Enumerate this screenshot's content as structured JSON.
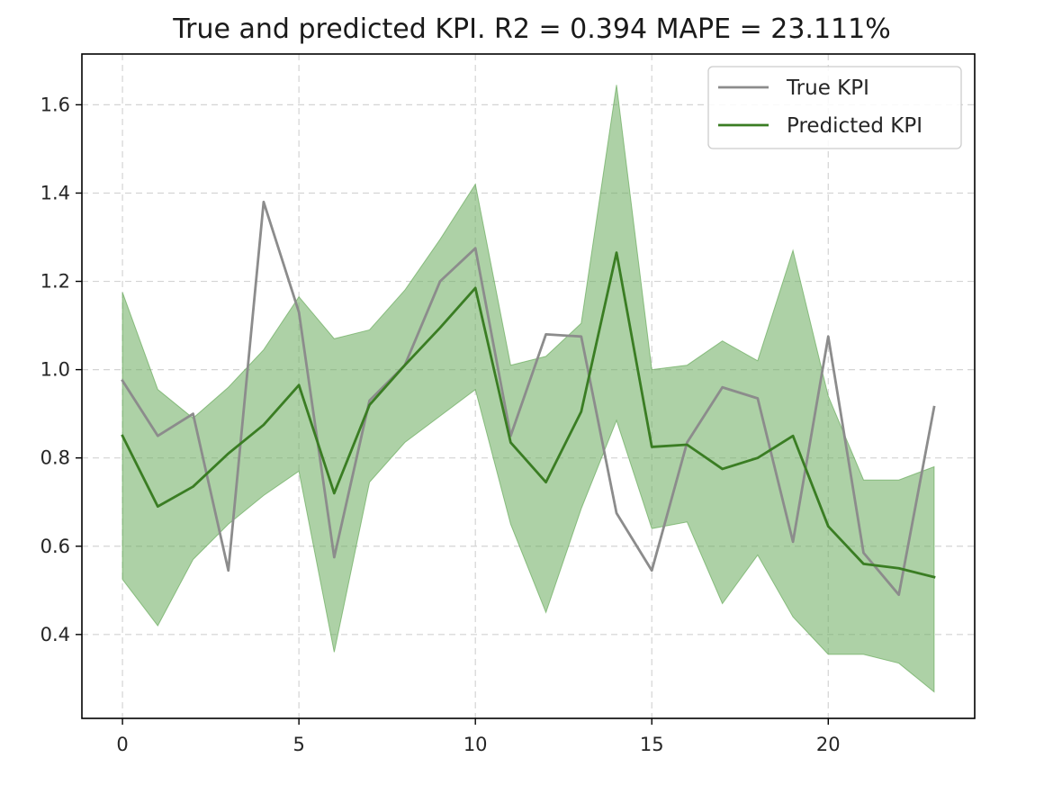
{
  "chart_data": {
    "type": "line",
    "title": "True and predicted KPI. R2 = 0.394 MAPE = 23.111%",
    "xlabel": "",
    "ylabel": "",
    "xlim": [
      -1.15,
      24.15
    ],
    "ylim": [
      0.21,
      1.715
    ],
    "xticks": [
      0,
      5,
      10,
      15,
      20
    ],
    "yticks": [
      0.4,
      0.6,
      0.8,
      1.0,
      1.2,
      1.4,
      1.6
    ],
    "xtick_labels": [
      "0",
      "5",
      "10",
      "15",
      "20"
    ],
    "ytick_labels": [
      "0.4",
      "0.6",
      "0.8",
      "1.0",
      "1.2",
      "1.4",
      "1.6"
    ],
    "grid": true,
    "legend_position": "top-right",
    "x": [
      0,
      1,
      2,
      3,
      4,
      5,
      6,
      7,
      8,
      9,
      10,
      11,
      12,
      13,
      14,
      15,
      16,
      17,
      18,
      19,
      20,
      21,
      22,
      23
    ],
    "series": [
      {
        "name": "True KPI",
        "color": "#8c8c8c",
        "values": [
          0.975,
          0.85,
          0.9,
          0.545,
          1.38,
          1.13,
          0.575,
          0.93,
          1.01,
          1.2,
          1.275,
          0.85,
          1.08,
          1.075,
          0.675,
          0.545,
          0.835,
          0.96,
          0.935,
          0.61,
          1.075,
          0.585,
          0.49,
          0.915
        ]
      },
      {
        "name": "Predicted KPI",
        "color": "#3a7d23",
        "values": [
          0.85,
          0.69,
          0.735,
          0.81,
          0.875,
          0.965,
          0.72,
          0.92,
          1.01,
          1.095,
          1.185,
          0.835,
          0.745,
          0.905,
          1.265,
          0.825,
          0.83,
          0.775,
          0.8,
          0.85,
          0.645,
          0.56,
          0.55,
          0.53
        ]
      }
    ],
    "band": {
      "series": "Predicted KPI",
      "color": "#6aab5d",
      "opacity": 0.55,
      "upper": [
        1.175,
        0.955,
        0.89,
        0.96,
        1.045,
        1.165,
        1.07,
        1.09,
        1.18,
        1.295,
        1.42,
        1.01,
        1.03,
        1.105,
        1.645,
        1.0,
        1.01,
        1.065,
        1.02,
        1.27,
        0.94,
        0.75,
        0.75,
        0.78
      ],
      "lower": [
        0.525,
        0.42,
        0.57,
        0.65,
        0.715,
        0.77,
        0.36,
        0.745,
        0.835,
        0.895,
        0.955,
        0.65,
        0.45,
        0.685,
        0.885,
        0.64,
        0.655,
        0.47,
        0.58,
        0.44,
        0.355,
        0.355,
        0.335,
        0.27
      ]
    }
  }
}
